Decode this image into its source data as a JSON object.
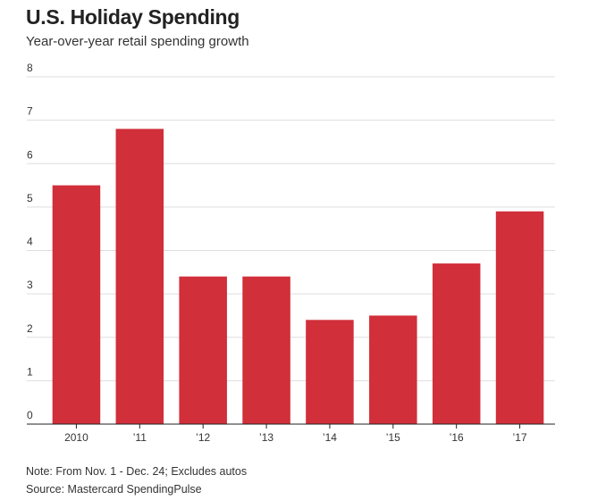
{
  "header": {
    "title": "U.S. Holiday Spending",
    "subtitle": "Year-over-year retail spending growth"
  },
  "footer": {
    "note": "Note: From Nov. 1 - Dec. 24; Excludes autos",
    "source": "Source: Mastercard SpendingPulse"
  },
  "chart_data": {
    "type": "bar",
    "title": "U.S. Holiday Spending",
    "subtitle": "Year-over-year retail spending growth",
    "categories": [
      "2010",
      "’11",
      "’12",
      "’13",
      "’14",
      "’15",
      "’16",
      "’17"
    ],
    "values": [
      5.5,
      6.8,
      3.4,
      3.4,
      2.4,
      2.5,
      3.7,
      4.9
    ],
    "ylim": [
      0,
      8
    ],
    "yticks": [
      0,
      1,
      2,
      3,
      4,
      5,
      6,
      7,
      8
    ],
    "xlabel": "",
    "ylabel": "",
    "grid": true,
    "bar_color": "#d12f3a",
    "grid_color": "#dddddd",
    "axis_color": "#222222"
  }
}
